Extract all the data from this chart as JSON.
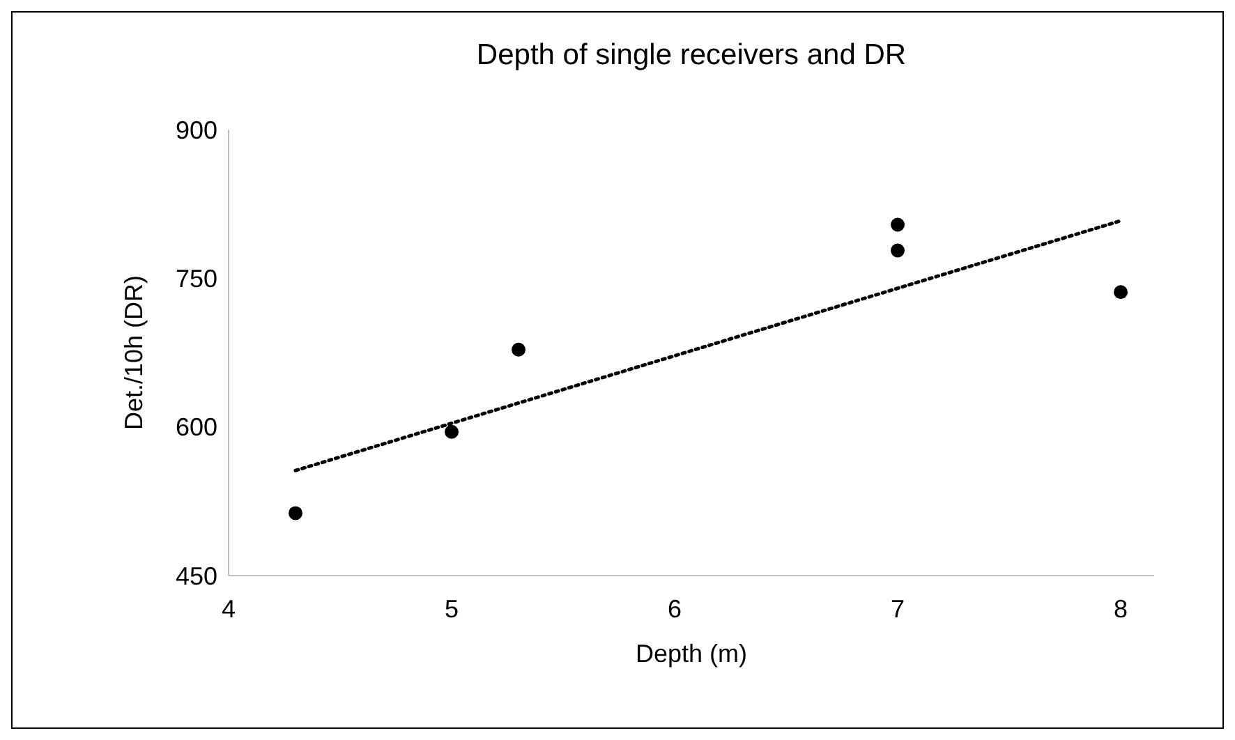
{
  "chart_data": {
    "type": "scatter",
    "title": "Depth of single receivers and DR",
    "xlabel": "Depth (m)",
    "ylabel": "Det./10h (DR)",
    "xlim": [
      4,
      8.15
    ],
    "ylim": [
      450,
      900
    ],
    "xticks": [
      4,
      5,
      6,
      7,
      8
    ],
    "yticks": [
      450,
      600,
      750,
      900
    ],
    "grid": false,
    "series": [
      {
        "type": "scatter",
        "color": "#000000",
        "marker": "circle",
        "x": [
          4.3,
          5,
          5.3,
          7,
          7,
          8
        ],
        "values": [
          513,
          595,
          678,
          804,
          778,
          736
        ]
      },
      {
        "type": "line",
        "color": "#000000",
        "marker": "none",
        "line_style": "dotted",
        "x": [
          4.3,
          8
        ],
        "values": [
          556,
          808
        ]
      }
    ]
  }
}
